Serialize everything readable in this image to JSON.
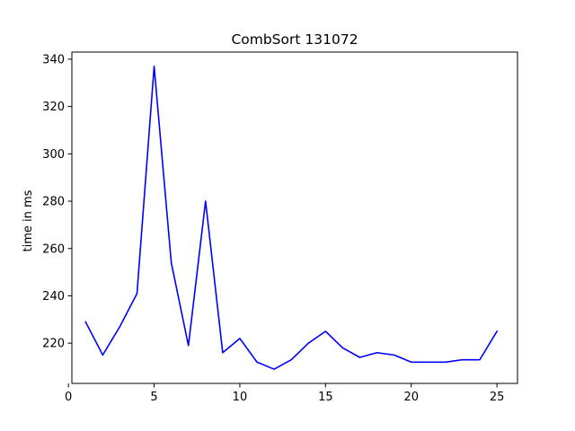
{
  "chart_data": {
    "type": "line",
    "title": "CombSort 131072",
    "xlabel": "",
    "ylabel": "time in ms",
    "xlim": [
      0.2,
      26.2
    ],
    "ylim": [
      203,
      343
    ],
    "x_ticks": [
      0,
      5,
      10,
      15,
      20,
      25
    ],
    "y_ticks": [
      220,
      240,
      260,
      280,
      300,
      320,
      340
    ],
    "grid": false,
    "series": [
      {
        "color": "#0000ff",
        "x": [
          1,
          2,
          3,
          4,
          5,
          6,
          7,
          8,
          9,
          10,
          11,
          12,
          13,
          14,
          15,
          16,
          17,
          18,
          19,
          20,
          21,
          22,
          23,
          24,
          25
        ],
        "y": [
          229,
          215,
          227,
          241,
          337,
          254,
          219,
          280,
          216,
          222,
          212,
          209,
          213,
          220,
          225,
          218,
          214,
          216,
          215,
          212,
          212,
          212,
          213,
          213,
          225
        ]
      }
    ]
  }
}
